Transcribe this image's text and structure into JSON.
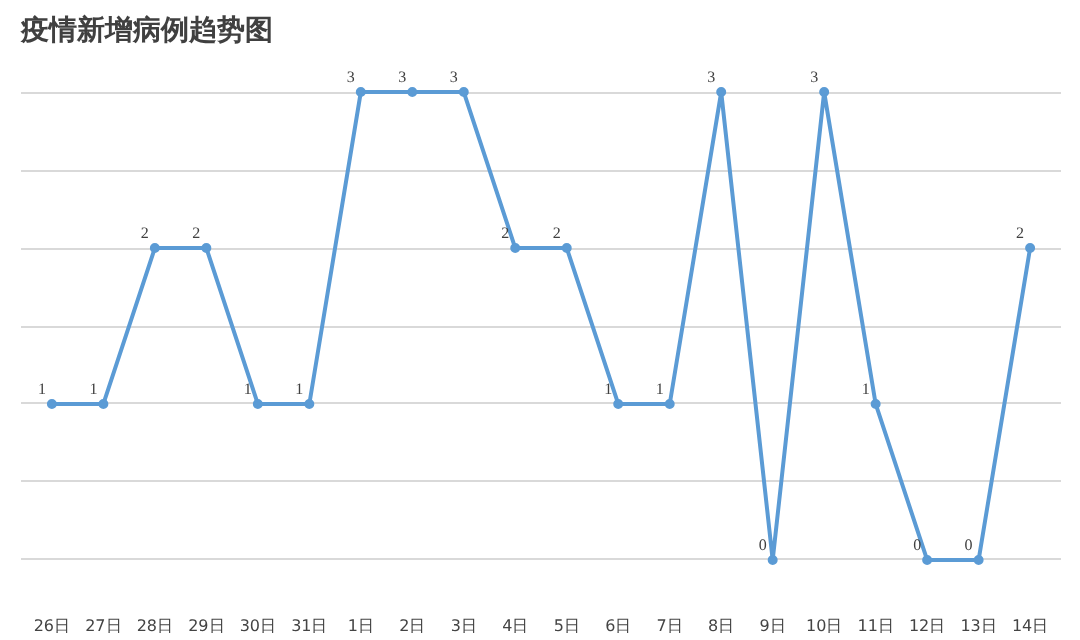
{
  "chart_data": {
    "type": "line",
    "title": "疫情新增病例趋势图",
    "categories": [
      "26日",
      "27日",
      "28日",
      "29日",
      "30日",
      "31日",
      "1日",
      "2日",
      "3日",
      "4日",
      "5日",
      "6日",
      "7日",
      "8日",
      "9日",
      "10日",
      "11日",
      "12日",
      "13日",
      "14日"
    ],
    "series": [
      {
        "color": "#5b9bd5",
        "values": [
          1,
          1,
          2,
          2,
          1,
          1,
          3,
          3,
          3,
          2,
          2,
          1,
          1,
          3,
          0,
          3,
          1,
          0,
          0,
          2
        ]
      }
    ],
    "tick_labels": "x",
    "grid": "y",
    "data_labels": true,
    "marker": "circle",
    "line_style": "solid"
  }
}
